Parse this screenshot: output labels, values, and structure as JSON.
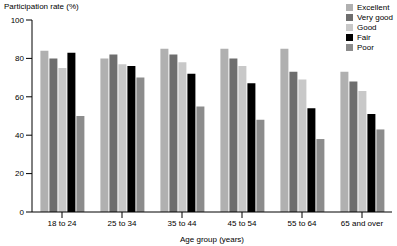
{
  "chart_data": {
    "type": "bar",
    "y_label": "Participation rate (%)",
    "x_label": "Age group (years)",
    "categories": [
      "18 to 24",
      "25 to 34",
      "35 to 44",
      "45 to 54",
      "55 to 64",
      "65 and over"
    ],
    "series": [
      {
        "name": "Excellent",
        "color": "#b0b0b0",
        "values": [
          84,
          80,
          85,
          85,
          85,
          73
        ]
      },
      {
        "name": "Very good",
        "color": "#6e6e6e",
        "values": [
          80,
          82,
          82,
          80,
          73,
          68
        ]
      },
      {
        "name": "Good",
        "color": "#c8c8c8",
        "values": [
          75,
          77,
          78,
          76,
          69,
          63
        ]
      },
      {
        "name": "Fair",
        "color": "#000000",
        "values": [
          83,
          76,
          72,
          67,
          54,
          51
        ]
      },
      {
        "name": "Poor",
        "color": "#8c8c8c",
        "values": [
          50,
          70,
          55,
          48,
          38,
          43
        ]
      }
    ],
    "ylim": [
      0,
      100
    ],
    "yticks": [
      0,
      20,
      40,
      60,
      80,
      100
    ],
    "legend": "top-right",
    "grid": false
  }
}
